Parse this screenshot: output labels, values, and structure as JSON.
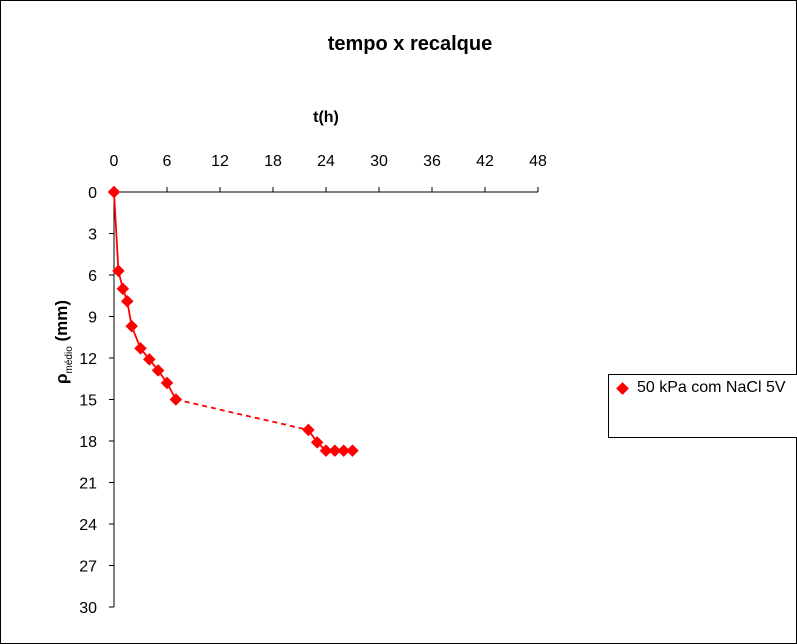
{
  "chart_data": {
    "type": "scatter",
    "title": "tempo x recalque",
    "xlabel": "t(h)",
    "ylabel_main": "ρ",
    "ylabel_sub": "médio",
    "ylabel_unit": "(mm)",
    "xlim": [
      0,
      48
    ],
    "ylim": [
      0,
      30
    ],
    "x_ticks": [
      0,
      6,
      12,
      18,
      24,
      30,
      36,
      42,
      48
    ],
    "y_ticks": [
      0,
      3,
      6,
      9,
      12,
      15,
      18,
      21,
      24,
      27,
      30
    ],
    "x_axis_position": "top",
    "y_axis_inverted": true,
    "grid": false,
    "legend_position": "right",
    "series": [
      {
        "name": "50 kPa com NaCl 5V",
        "color": "#ff0000",
        "marker": "diamond",
        "x": [
          0,
          0.5,
          1,
          1.5,
          2,
          3,
          4,
          5,
          6,
          7,
          22,
          23,
          24,
          25,
          26,
          27
        ],
        "y": [
          0,
          5.7,
          7,
          7.9,
          9.7,
          11.3,
          12.1,
          12.9,
          13.8,
          15,
          17.2,
          18.1,
          18.7,
          18.7,
          18.7,
          18.7
        ]
      }
    ]
  }
}
